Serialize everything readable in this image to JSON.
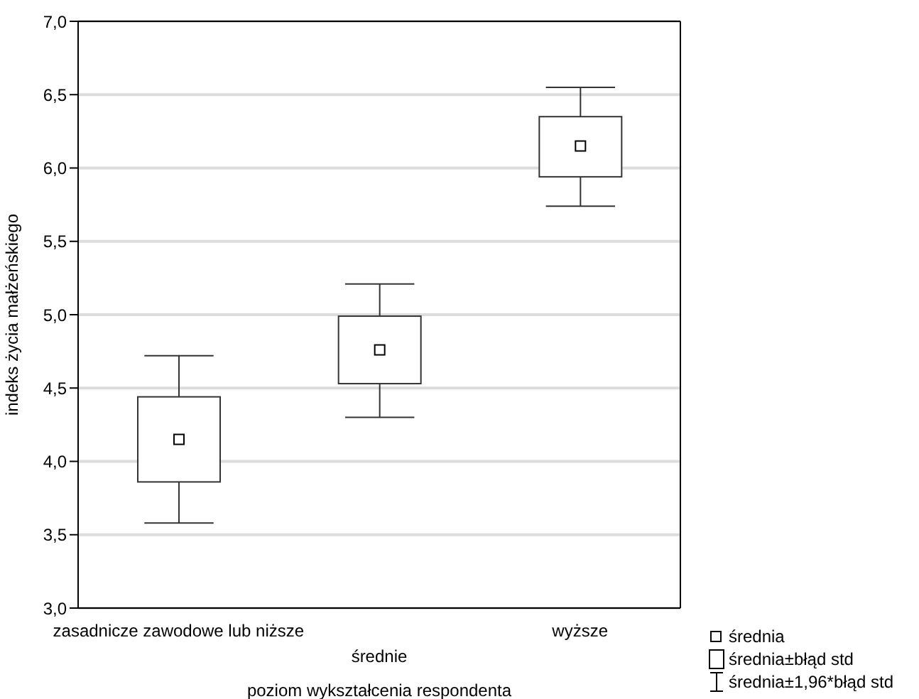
{
  "chart_data": {
    "type": "box",
    "xlabel": "poziom wykształcenia respondenta",
    "ylabel": "indeks życia małżeńskiego",
    "categories": [
      "zasadnicze zawodowe lub niższe",
      "średnie",
      "wyższe"
    ],
    "boxes": [
      {
        "low": 3.58,
        "q1": 3.86,
        "median": 4.15,
        "q3": 4.44,
        "high": 4.72
      },
      {
        "low": 4.3,
        "q1": 4.53,
        "median": 4.76,
        "q3": 4.99,
        "high": 5.21
      },
      {
        "low": 5.74,
        "q1": 5.94,
        "median": 6.15,
        "q3": 6.35,
        "high": 6.55
      }
    ],
    "ylim": [
      3,
      7
    ],
    "yticks": [
      {
        "value": 3,
        "label": "3,0"
      },
      {
        "value": 3.5,
        "label": "3,5"
      },
      {
        "value": 4,
        "label": "4,0"
      },
      {
        "value": 4.5,
        "label": "4,5"
      },
      {
        "value": 5,
        "label": "5,0"
      },
      {
        "value": 5.5,
        "label": "5,5"
      },
      {
        "value": 6,
        "label": "6,0"
      },
      {
        "value": 6.5,
        "label": "6,5"
      },
      {
        "value": 7,
        "label": "7,0"
      }
    ],
    "grid": "y",
    "annotations": [
      "średnia",
      "średnia±błąd std",
      "średnia±1,96*błąd std"
    ]
  }
}
